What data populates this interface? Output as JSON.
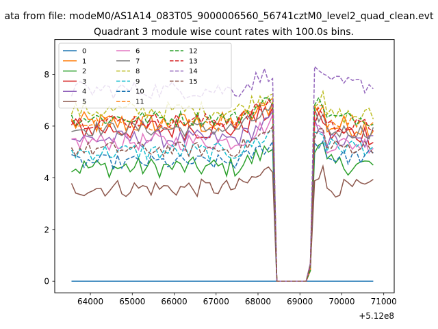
{
  "chart_data": {
    "type": "line",
    "suptitle": "ata from file: modeM0/AS1A14_083T05_9000006560_56741cztM0_level2_quad_clean.evt",
    "title": "Quadrant 3 module wise count rates with 100.0s bins.",
    "xlabel": "",
    "ylabel": "",
    "offset_text": "+5.12e8",
    "xlim": [
      63150,
      71250
    ],
    "ylim": [
      -0.45,
      9.35
    ],
    "xticks": [
      64000,
      65000,
      66000,
      67000,
      68000,
      69000,
      70000,
      71000
    ],
    "xtick_labels": [
      "64000",
      "65000",
      "66000",
      "67000",
      "68000",
      "69000",
      "70000",
      "71000"
    ],
    "yticks": [
      0,
      2,
      4,
      6,
      8
    ],
    "ytick_labels": [
      "0",
      "2",
      "4",
      "6",
      "8"
    ],
    "x_range": {
      "start": 63550,
      "step": 100,
      "count": 73
    },
    "gap": {
      "before_drop": 68350,
      "zero_start": 68450,
      "zero_end": 69150,
      "rise_step": 69250,
      "resume": 69350,
      "end": 70750,
      "end_drop": 70850
    },
    "legend": {
      "location": "upper-left",
      "columns": 3
    },
    "series": [
      {
        "name": "0",
        "color": "#1f77b4",
        "style": "solid",
        "level": 0.0,
        "amp": 0,
        "after": 0.0,
        "zero_line": true
      },
      {
        "name": "1",
        "color": "#ff7f0e",
        "style": "solid",
        "level": 6.1,
        "amp": 0.45,
        "after": 6.0
      },
      {
        "name": "2",
        "color": "#2ca02c",
        "style": "solid",
        "level": 4.4,
        "amp": 0.4,
        "after": 4.5
      },
      {
        "name": "3",
        "color": "#d62728",
        "style": "solid",
        "level": 5.9,
        "amp": 0.45,
        "after": 5.7
      },
      {
        "name": "4",
        "color": "#9467bd",
        "style": "solid",
        "level": 5.5,
        "amp": 0.35,
        "after": 5.4
      },
      {
        "name": "5",
        "color": "#8c564b",
        "style": "solid",
        "level": 3.6,
        "amp": 0.35,
        "after": 3.6
      },
      {
        "name": "6",
        "color": "#e377c2",
        "style": "solid",
        "level": 5.4,
        "amp": 0.35,
        "after": 5.3
      },
      {
        "name": "7",
        "color": "#7f7f7f",
        "style": "solid",
        "level": 5.9,
        "amp": 0.3,
        "after": 5.8
      },
      {
        "name": "8",
        "color": "#bcbd22",
        "style": "dashed",
        "level": 6.6,
        "amp": 0.35,
        "after": 6.4
      },
      {
        "name": "9",
        "color": "#17becf",
        "style": "dashed",
        "level": 5.0,
        "amp": 0.35,
        "after": 5.2
      },
      {
        "name": "10",
        "color": "#1f77b4",
        "style": "dashed",
        "level": 4.6,
        "amp": 0.3,
        "after": 4.8
      },
      {
        "name": "11",
        "color": "#ff7f0e",
        "style": "dashed",
        "level": 6.1,
        "amp": 0.3,
        "after": 6.2
      },
      {
        "name": "12",
        "color": "#2ca02c",
        "style": "dashed",
        "level": 6.3,
        "amp": 0.3,
        "after": 6.3
      },
      {
        "name": "13",
        "color": "#d62728",
        "style": "dashed",
        "level": 6.2,
        "amp": 0.3,
        "after": 6.0
      },
      {
        "name": "14",
        "color": "#9467bd",
        "style": "dashed",
        "level": 7.4,
        "amp": 0.35,
        "after": 7.6
      },
      {
        "name": "15",
        "color": "#8c564b",
        "style": "dashed",
        "level": 5.1,
        "amp": 0.3,
        "after": 5.2
      }
    ]
  }
}
